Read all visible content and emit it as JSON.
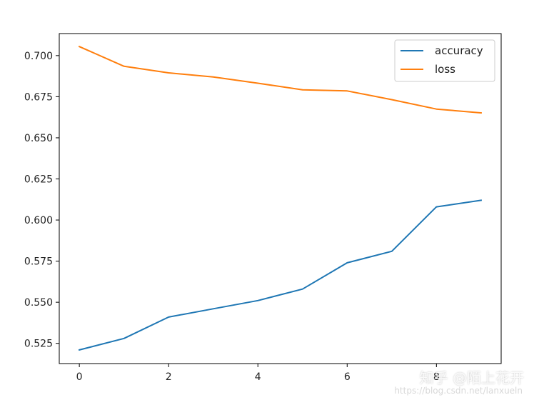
{
  "chart_data": {
    "type": "line",
    "title": "",
    "xlabel": "",
    "ylabel": "",
    "x": [
      0,
      1,
      2,
      3,
      4,
      5,
      6,
      7,
      8,
      9
    ],
    "xlim": [
      -0.45,
      9.45
    ],
    "ylim": [
      0.5127,
      0.7134
    ],
    "xticks": [
      0,
      2,
      4,
      6,
      8
    ],
    "yticks": [
      0.525,
      0.55,
      0.575,
      0.6,
      0.625,
      0.65,
      0.675,
      0.7
    ],
    "grid": false,
    "legend_position": "top-right",
    "series": [
      {
        "name": "accuracy",
        "color": "#1f77b4",
        "values": [
          0.521,
          0.528,
          0.541,
          0.546,
          0.551,
          0.558,
          0.574,
          0.581,
          0.608,
          0.612
        ]
      },
      {
        "name": "loss",
        "color": "#ff7f0e",
        "values": [
          0.7055,
          0.6935,
          0.6895,
          0.687,
          0.6832,
          0.6792,
          0.6785,
          0.6732,
          0.6675,
          0.6652
        ]
      }
    ]
  },
  "watermark": {
    "main": "知乎 @陌上花开",
    "url": "https://blog.csdn.net/lanxueln"
  }
}
